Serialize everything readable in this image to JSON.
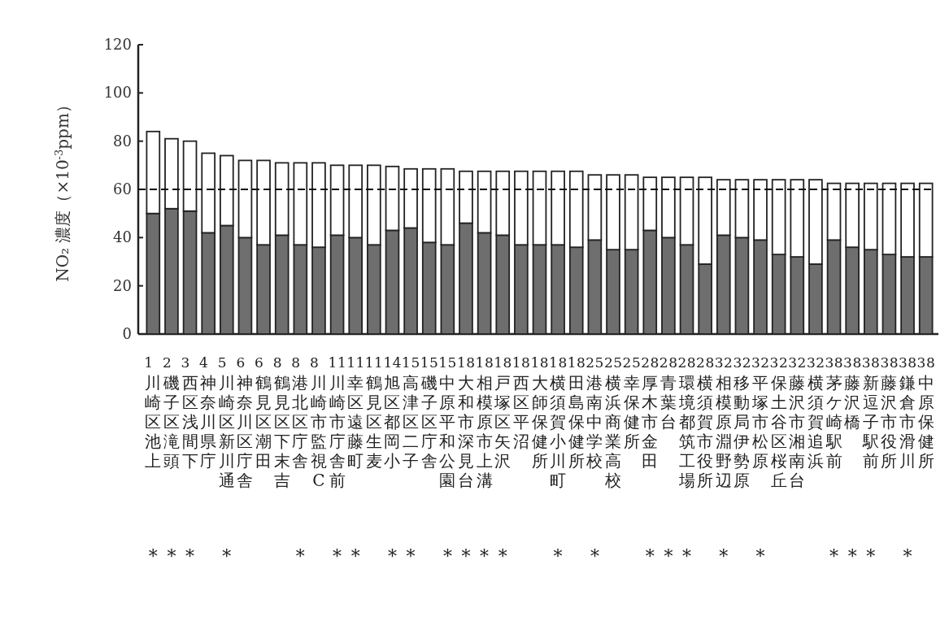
{
  "chart_data": {
    "type": "bar",
    "stacked": true,
    "ylabel": "NO₂ 濃度（×10$^{-3}$ppm）",
    "categories": [
      "川崎区池上",
      "磯子区滝頭",
      "西区浅間下",
      "神奈川県庁",
      "川崎区新川通",
      "神奈川区庁舎",
      "鶴見区潮田",
      "鶴見区下末吉",
      "港北区庁舎",
      "川崎市監視C",
      "川崎市庁舎前",
      "幸区遠藤町",
      "鶴見区生麦",
      "旭区都岡小",
      "高津区二子",
      "磯子区庁舎",
      "中原平和公園",
      "大和市深見台",
      "相模原市上溝",
      "戸塚区矢沢",
      "西区平沼",
      "大師保健所",
      "横須賀小川町",
      "田島保健所",
      "港南中学校",
      "横浜商業高校",
      "幸保健所",
      "厚木市金田",
      "青葉台",
      "環境都筑工場",
      "横須賀市役所",
      "相模原淵野辺",
      "移動局伊勢原",
      "平塚市松原",
      "保土谷区桜丘",
      "藤沢市湘南台",
      "横須賀追浜",
      "茅ケ崎駅前",
      "藤沢橋",
      "新逗子駅前",
      "藤沢市役所",
      "鎌倉市滑川",
      "中原保健所"
    ],
    "series": [
      {
        "color": "#6e6e6e",
        "values": [
          50,
          52,
          51,
          42,
          45,
          40,
          37,
          41,
          37,
          36,
          41,
          40,
          37,
          43,
          44,
          38,
          37,
          46,
          42,
          41,
          37,
          37,
          37,
          36,
          39,
          35,
          35,
          43,
          40,
          37,
          29,
          41,
          40,
          39,
          33,
          32,
          29,
          39,
          36,
          35,
          33,
          32,
          32
        ]
      },
      {
        "color": "#ffffff",
        "values": [
          34,
          29,
          29,
          33,
          29,
          32,
          35,
          30,
          34,
          35,
          29,
          30,
          33,
          26.5,
          24.5,
          30.5,
          31.5,
          21.5,
          25.5,
          26.5,
          30.5,
          30.5,
          30.5,
          31.5,
          27,
          31,
          31,
          22,
          25,
          28,
          36,
          23,
          24,
          25,
          31,
          32,
          35,
          23.5,
          26.5,
          27.5,
          29.5,
          30.5,
          30.5
        ]
      }
    ],
    "ylim": [
      0,
      120
    ],
    "yticks": [
      0,
      20,
      40,
      60,
      80,
      100,
      120
    ],
    "ref_lines": [
      {
        "axis": "y",
        "value": 60,
        "line_style": "dashed"
      }
    ],
    "annotations": [
      "1 2 3 4 5 6 6 8 8 8 111111141515151818181818181825252528282828323232323232383838383838",
      "*** *   * ** ** ****  * *  *** * *   *** *"
    ]
  }
}
